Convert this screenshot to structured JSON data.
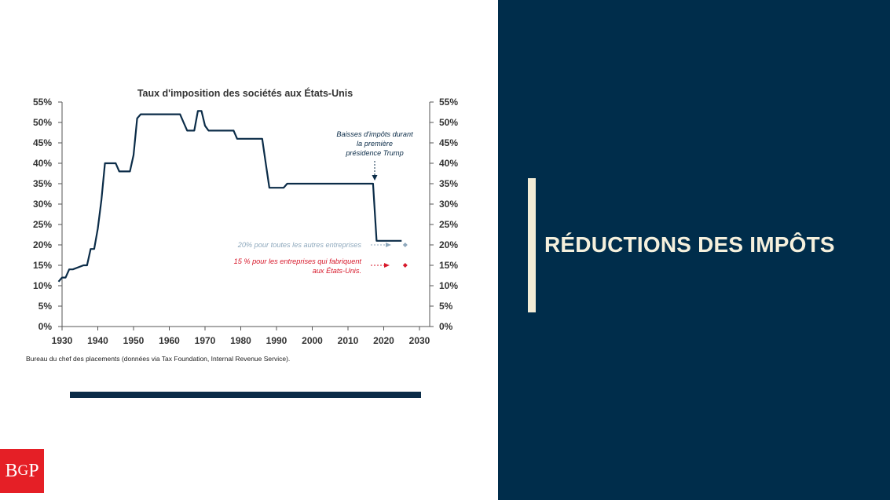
{
  "chart_data": {
    "type": "line",
    "title": "Taux d'imposition des sociétés aux États-Unis",
    "xlabel": "",
    "ylabel": "",
    "xlim": [
      1930,
      2030
    ],
    "ylim": [
      0,
      55
    ],
    "x_ticks": [
      "1930",
      "1940",
      "1950",
      "1960",
      "1970",
      "1980",
      "1990",
      "2000",
      "2010",
      "2020",
      "2030"
    ],
    "y_ticks": [
      "0%",
      "5%",
      "10%",
      "15%",
      "20%",
      "25%",
      "30%",
      "35%",
      "40%",
      "45%",
      "50%",
      "55%"
    ],
    "grid": false,
    "series": [
      {
        "color": "#0b2c48",
        "x": [
          1929,
          1930,
          1931,
          1932,
          1933,
          1936,
          1937,
          1938,
          1939,
          1940,
          1941,
          1942,
          1945,
          1946,
          1949,
          1950,
          1951,
          1952,
          1953,
          1963,
          1964,
          1965,
          1967,
          1968,
          1969,
          1970,
          1971,
          1978,
          1979,
          1986,
          1987,
          1988,
          1992,
          1993,
          2017,
          2018,
          2025
        ],
        "values": [
          11,
          12,
          12,
          14,
          14,
          15,
          15,
          19,
          19,
          24,
          31,
          40,
          40,
          38,
          38,
          42,
          51,
          52,
          52,
          52,
          50,
          48,
          48,
          52.8,
          52.8,
          49.2,
          48,
          48,
          46,
          46,
          40,
          34,
          34,
          35,
          35,
          21,
          21
        ]
      }
    ],
    "points": [
      {
        "x": 2026,
        "y": 20,
        "color": "#8fa9bd"
      },
      {
        "x": 2026,
        "y": 15,
        "color": "#d7192b"
      }
    ],
    "annotations": [
      {
        "text": "Baisses d'impôts durant la première présidence Trump",
        "color": "#0b2c48"
      },
      {
        "text": "20% pour toutes les autres entreprises",
        "color": "#8fa9bd"
      },
      {
        "text": "15 % pour les entreprises qui fabriquent aux États-Unis.",
        "color": "#d7192b"
      }
    ]
  },
  "annotation_lines": {
    "trump": [
      "Baisses d'impôts durant",
      "la première",
      "présidence Trump"
    ],
    "twenty": [
      "20% pour toutes les autres entreprises"
    ],
    "fifteen": [
      "15 % pour les entreprises qui fabriquent",
      "aux États-Unis."
    ]
  },
  "source_note": "Bureau du chef des placements (données via Tax Foundation, Internal Revenue Service).",
  "logo": {
    "b": "B",
    "g": "G",
    "p": "P"
  },
  "panel_title": "RÉDUCTIONS DES IMPÔTS",
  "colors": {
    "navy": "#002d4b",
    "cream": "#f2ecd6",
    "logo_red": "#e51f26"
  }
}
